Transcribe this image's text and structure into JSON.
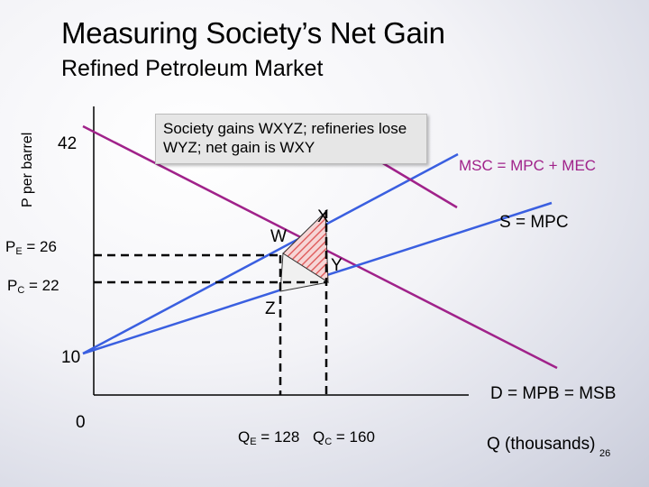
{
  "title": "Measuring Society’s Net Gain",
  "subtitle": "Refined Petroleum Market",
  "y_axis_label": "P per barrel",
  "callout": "Society gains WXYZ; refineries lose WYZ; net gain is WXY",
  "labels": {
    "price_42": "42",
    "pe_main": "P",
    "pe_sub": "E",
    "pe_value": " = 26",
    "pc_main": "P",
    "pc_sub": "C",
    "pc_value": " = 22",
    "price_10": "10",
    "origin": "0",
    "qe_main": "Q",
    "qe_sub": "E",
    "qe_value": " = 128",
    "qc_main": "Q",
    "qc_sub": "C",
    "qc_value": " = 160",
    "x_axis": "Q (thousands)",
    "slide_number": "26",
    "point_w": "W",
    "point_x": "X",
    "point_y": "Y",
    "point_z": "Z",
    "msc_curve": "MSC = MPC + MEC",
    "supply_curve": "S = MPC",
    "demand_curve": "D = MPB = MSB"
  },
  "colors": {
    "demand_line": "#a0228a",
    "supply_line": "#3a5fe0",
    "msc_line": "#a0228a",
    "hatch": "#e06060",
    "axis": "#000000"
  }
}
